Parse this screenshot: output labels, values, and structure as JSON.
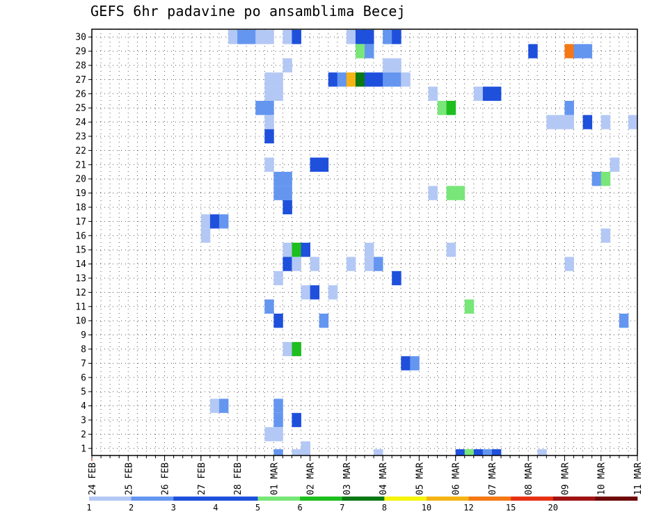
{
  "chart_data": {
    "type": "heatmap",
    "title": "GEFS 6hr padavine po ansamblima Becej",
    "ylabel": "",
    "xlabel": "",
    "y_ticks": [
      "1",
      "2",
      "3",
      "4",
      "5",
      "6",
      "7",
      "8",
      "9",
      "10",
      "11",
      "12",
      "13",
      "14",
      "15",
      "16",
      "17",
      "18",
      "19",
      "20",
      "21",
      "22",
      "23",
      "24",
      "25",
      "26",
      "27",
      "28",
      "29",
      "30"
    ],
    "x_ticks": [
      "24 FEB",
      "25 FEB",
      "26 FEB",
      "27 FEB",
      "28 FEB",
      "01 MAR",
      "02 MAR",
      "03 MAR",
      "04 MAR",
      "05 MAR",
      "06 MAR",
      "07 MAR",
      "08 MAR",
      "09 MAR",
      "10 MAR",
      "11 MAR"
    ],
    "time_steps_per_day": 4,
    "total_steps": 60,
    "grid": true,
    "colorbar": {
      "labels": [
        "1",
        "2",
        "3",
        "4",
        "5",
        "6",
        "7",
        "8",
        "10",
        "12",
        "15",
        "20"
      ],
      "colors": [
        "#b4c8f5",
        "#6496f0",
        "#1e50dc",
        "#1e50dc",
        "#78e678",
        "#1ebe1e",
        "#0a7814",
        "#f5f50a",
        "#f5b414",
        "#f57814",
        "#e63214",
        "#a01414",
        "#6e0a0a"
      ]
    },
    "cells": [
      {
        "member": 30,
        "step": 15,
        "value": 1.5
      },
      {
        "member": 30,
        "step": 16,
        "value": 2.5
      },
      {
        "member": 30,
        "step": 17,
        "value": 2.5
      },
      {
        "member": 30,
        "step": 18,
        "value": 1.5
      },
      {
        "member": 30,
        "step": 19,
        "value": 1.5
      },
      {
        "member": 30,
        "step": 21,
        "value": 1.5
      },
      {
        "member": 30,
        "step": 22,
        "value": 3.5
      },
      {
        "member": 30,
        "step": 28,
        "value": 1.5
      },
      {
        "member": 30,
        "step": 29,
        "value": 3.5
      },
      {
        "member": 30,
        "step": 30,
        "value": 4.5
      },
      {
        "member": 30,
        "step": 32,
        "value": 2.5
      },
      {
        "member": 30,
        "step": 33,
        "value": 3.5
      },
      {
        "member": 29,
        "step": 29,
        "value": 5.5
      },
      {
        "member": 29,
        "step": 30,
        "value": 2.5
      },
      {
        "member": 29,
        "step": 48,
        "value": 4.5
      },
      {
        "member": 29,
        "step": 52,
        "value": 12
      },
      {
        "member": 29,
        "step": 53,
        "value": 2.5
      },
      {
        "member": 29,
        "step": 54,
        "value": 2.5
      },
      {
        "member": 28,
        "step": 21,
        "value": 1.5
      },
      {
        "member": 28,
        "step": 32,
        "value": 1.5
      },
      {
        "member": 28,
        "step": 33,
        "value": 1.5
      },
      {
        "member": 27,
        "step": 19,
        "value": 1.5
      },
      {
        "member": 27,
        "step": 20,
        "value": 1.5
      },
      {
        "member": 27,
        "step": 26,
        "value": 3.5
      },
      {
        "member": 27,
        "step": 27,
        "value": 2.5
      },
      {
        "member": 27,
        "step": 28,
        "value": 11
      },
      {
        "member": 27,
        "step": 29,
        "value": 7.5
      },
      {
        "member": 27,
        "step": 30,
        "value": 4.5
      },
      {
        "member": 27,
        "step": 31,
        "value": 3.5
      },
      {
        "member": 27,
        "step": 32,
        "value": 2.5
      },
      {
        "member": 27,
        "step": 33,
        "value": 2.5
      },
      {
        "member": 27,
        "step": 34,
        "value": 1.5
      },
      {
        "member": 26,
        "step": 19,
        "value": 1.5
      },
      {
        "member": 26,
        "step": 20,
        "value": 1.5
      },
      {
        "member": 26,
        "step": 37,
        "value": 1.5
      },
      {
        "member": 26,
        "step": 42,
        "value": 1.5
      },
      {
        "member": 26,
        "step": 43,
        "value": 4.5
      },
      {
        "member": 26,
        "step": 44,
        "value": 3.5
      },
      {
        "member": 25,
        "step": 18,
        "value": 2.5
      },
      {
        "member": 25,
        "step": 19,
        "value": 2.5
      },
      {
        "member": 25,
        "step": 38,
        "value": 5.5
      },
      {
        "member": 25,
        "step": 39,
        "value": 6.5
      },
      {
        "member": 25,
        "step": 52,
        "value": 2.5
      },
      {
        "member": 24,
        "step": 19,
        "value": 1.5
      },
      {
        "member": 24,
        "step": 50,
        "value": 1.5
      },
      {
        "member": 24,
        "step": 51,
        "value": 1.5
      },
      {
        "member": 24,
        "step": 52,
        "value": 1.5
      },
      {
        "member": 24,
        "step": 54,
        "value": 3.5
      },
      {
        "member": 24,
        "step": 56,
        "value": 1.5
      },
      {
        "member": 24,
        "step": 59,
        "value": 1.5
      },
      {
        "member": 23,
        "step": 19,
        "value": 4.5
      },
      {
        "member": 21,
        "step": 19,
        "value": 1.5
      },
      {
        "member": 21,
        "step": 24,
        "value": 3.5
      },
      {
        "member": 21,
        "step": 25,
        "value": 3.5
      },
      {
        "member": 21,
        "step": 57,
        "value": 1.5
      },
      {
        "member": 20,
        "step": 20,
        "value": 2.5
      },
      {
        "member": 20,
        "step": 21,
        "value": 2.5
      },
      {
        "member": 20,
        "step": 55,
        "value": 2.5
      },
      {
        "member": 20,
        "step": 56,
        "value": 5.5
      },
      {
        "member": 19,
        "step": 20,
        "value": 2.5
      },
      {
        "member": 19,
        "step": 21,
        "value": 2.5
      },
      {
        "member": 19,
        "step": 37,
        "value": 1.5
      },
      {
        "member": 19,
        "step": 39,
        "value": 5.5
      },
      {
        "member": 19,
        "step": 40,
        "value": 5.5
      },
      {
        "member": 18,
        "step": 21,
        "value": 3.5
      },
      {
        "member": 17,
        "step": 12,
        "value": 1.5
      },
      {
        "member": 17,
        "step": 13,
        "value": 3.5
      },
      {
        "member": 17,
        "step": 14,
        "value": 2.5
      },
      {
        "member": 16,
        "step": 12,
        "value": 1.5
      },
      {
        "member": 16,
        "step": 56,
        "value": 1.5
      },
      {
        "member": 15,
        "step": 21,
        "value": 1.5
      },
      {
        "member": 15,
        "step": 22,
        "value": 6.5
      },
      {
        "member": 15,
        "step": 23,
        "value": 3.5
      },
      {
        "member": 15,
        "step": 30,
        "value": 1.5
      },
      {
        "member": 15,
        "step": 39,
        "value": 1.5
      },
      {
        "member": 14,
        "step": 21,
        "value": 3.5
      },
      {
        "member": 14,
        "step": 22,
        "value": 1.5
      },
      {
        "member": 14,
        "step": 24,
        "value": 1.5
      },
      {
        "member": 14,
        "step": 28,
        "value": 1.5
      },
      {
        "member": 14,
        "step": 30,
        "value": 1.5
      },
      {
        "member": 14,
        "step": 31,
        "value": 2.5
      },
      {
        "member": 14,
        "step": 52,
        "value": 1.5
      },
      {
        "member": 13,
        "step": 20,
        "value": 1.5
      },
      {
        "member": 13,
        "step": 33,
        "value": 3.5
      },
      {
        "member": 12,
        "step": 23,
        "value": 1.5
      },
      {
        "member": 12,
        "step": 24,
        "value": 3.5
      },
      {
        "member": 12,
        "step": 26,
        "value": 1.5
      },
      {
        "member": 11,
        "step": 19,
        "value": 2.5
      },
      {
        "member": 11,
        "step": 41,
        "value": 5.5
      },
      {
        "member": 10,
        "step": 20,
        "value": 4.5
      },
      {
        "member": 10,
        "step": 25,
        "value": 2.5
      },
      {
        "member": 10,
        "step": 58,
        "value": 2.5
      },
      {
        "member": 8,
        "step": 21,
        "value": 1.5
      },
      {
        "member": 8,
        "step": 22,
        "value": 6.5
      },
      {
        "member": 7,
        "step": 34,
        "value": 4.5
      },
      {
        "member": 7,
        "step": 35,
        "value": 2.5
      },
      {
        "member": 4,
        "step": 13,
        "value": 1.5
      },
      {
        "member": 4,
        "step": 14,
        "value": 2.5
      },
      {
        "member": 4,
        "step": 20,
        "value": 2.5
      },
      {
        "member": 3,
        "step": 20,
        "value": 2.5
      },
      {
        "member": 3,
        "step": 22,
        "value": 3.5
      },
      {
        "member": 2,
        "step": 19,
        "value": 1.5
      },
      {
        "member": 2,
        "step": 20,
        "value": 1.5
      },
      {
        "member": 1,
        "step": 23,
        "value": 1.5
      },
      {
        "member": 0,
        "step": 20,
        "value": 2.5
      },
      {
        "member": 0,
        "step": 22,
        "value": 1.5
      },
      {
        "member": 0,
        "step": 31,
        "value": 1.5
      },
      {
        "member": 0,
        "step": 40,
        "value": 3.5
      },
      {
        "member": 0,
        "step": 41,
        "value": 5.5
      },
      {
        "member": 0,
        "step": 42,
        "value": 3.5
      },
      {
        "member": 0,
        "step": 43,
        "value": 2.5
      },
      {
        "member": 0,
        "step": 44,
        "value": 3.5
      },
      {
        "member": 0,
        "step": 49,
        "value": 1.5
      }
    ]
  }
}
